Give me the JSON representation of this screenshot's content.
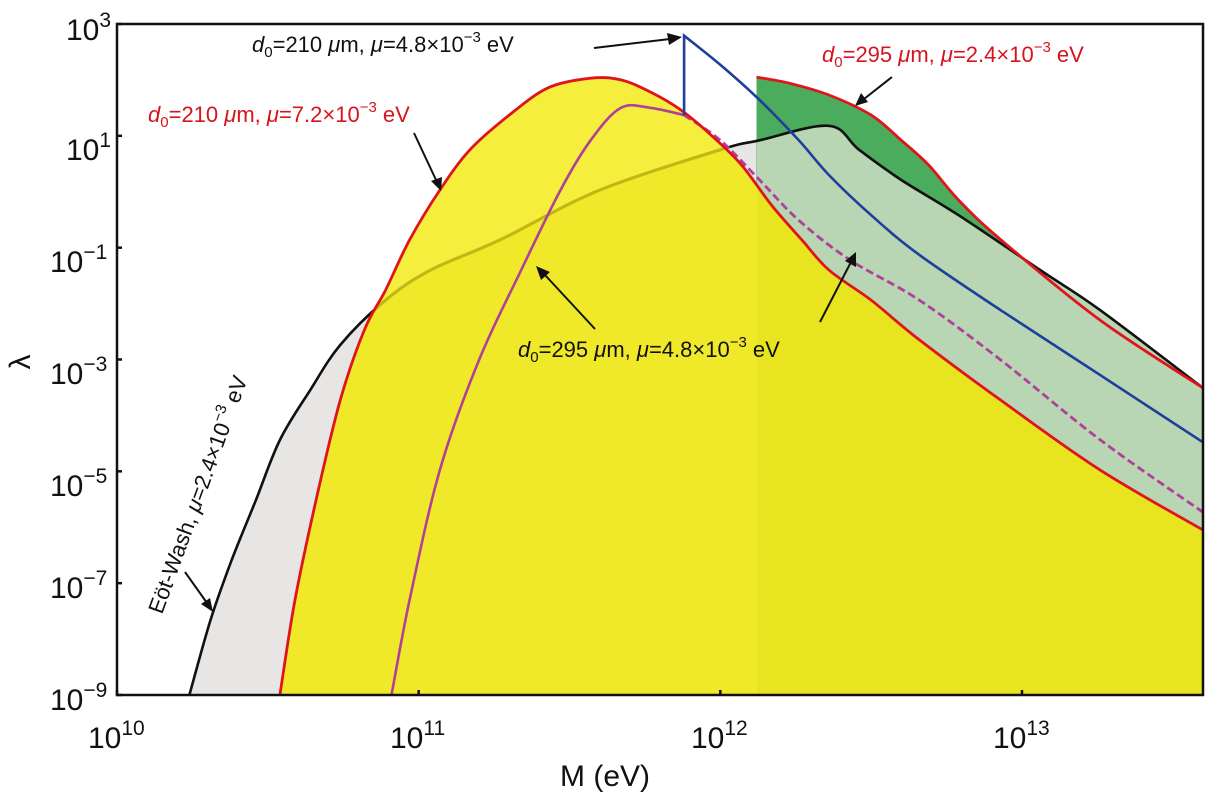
{
  "chart_data": {
    "type": "area",
    "title": "",
    "xlabel": "M (eV)",
    "ylabel": "λ",
    "xscale": "log",
    "yscale": "log",
    "xlim_log10": [
      10,
      13.6
    ],
    "ylim_log10": [
      -9,
      3
    ],
    "grid": false,
    "x_ticks": [
      {
        "base": "10",
        "exp": "10",
        "log": 10
      },
      {
        "base": "10",
        "exp": "11",
        "log": 11
      },
      {
        "base": "10",
        "exp": "12",
        "log": 12
      },
      {
        "base": "10",
        "exp": "13",
        "log": 13
      }
    ],
    "y_ticks": [
      {
        "base": "10",
        "exp": "3",
        "log": 3
      },
      {
        "base": "10",
        "exp": "1",
        "log": 1
      },
      {
        "base": "10",
        "exp": "−1",
        "log": -1
      },
      {
        "base": "10",
        "exp": "−3",
        "log": -3
      },
      {
        "base": "10",
        "exp": "−5",
        "log": -5
      },
      {
        "base": "10",
        "exp": "−7",
        "log": -7
      },
      {
        "base": "10",
        "exp": "−9",
        "log": -9
      }
    ],
    "series": [
      {
        "name": "Eöt-Wash, μ=2.4×10−3 eV",
        "style": "solid",
        "color": "#111111",
        "fill": "#e8e6e4",
        "points_log10": [
          [
            10.24,
            -9.0
          ],
          [
            10.31,
            -7.66
          ],
          [
            10.38,
            -6.59
          ],
          [
            10.46,
            -5.52
          ],
          [
            10.54,
            -4.44
          ],
          [
            10.64,
            -3.55
          ],
          [
            10.74,
            -2.74
          ],
          [
            10.89,
            -1.94
          ],
          [
            11.04,
            -1.4
          ],
          [
            11.27,
            -0.86
          ],
          [
            11.6,
            0.03
          ],
          [
            12.0,
            0.75
          ],
          [
            12.13,
            0.92
          ],
          [
            12.36,
            1.18
          ],
          [
            12.46,
            0.75
          ],
          [
            12.6,
            0.21
          ],
          [
            12.79,
            -0.42
          ],
          [
            13.06,
            -1.4
          ],
          [
            13.26,
            -2.12
          ],
          [
            13.6,
            -3.51
          ]
        ]
      },
      {
        "name": "d0=295 μm, μ=2.4×10−3 eV",
        "style": "solid",
        "color": "#e0141c",
        "fill": "#4aac5c",
        "points_log10": [
          [
            12.12,
            2.05
          ],
          [
            12.23,
            1.94
          ],
          [
            12.36,
            1.73
          ],
          [
            12.5,
            1.37
          ],
          [
            12.6,
            0.92
          ],
          [
            12.69,
            0.48
          ],
          [
            12.79,
            -0.15
          ],
          [
            12.93,
            -0.86
          ],
          [
            13.26,
            -2.3
          ],
          [
            13.6,
            -3.51
          ]
        ]
      },
      {
        "name": "d0=210 μm, μ=7.2×10−3 eV",
        "style": "solid",
        "color": "#e0141c",
        "fill": "#f5ee3c",
        "points_log10": [
          [
            10.54,
            -9.0
          ],
          [
            10.59,
            -7.3
          ],
          [
            10.66,
            -5.51
          ],
          [
            10.74,
            -3.73
          ],
          [
            10.82,
            -2.47
          ],
          [
            10.89,
            -1.76
          ],
          [
            10.97,
            -0.86
          ],
          [
            11.07,
            0.03
          ],
          [
            11.17,
            0.75
          ],
          [
            11.3,
            1.37
          ],
          [
            11.43,
            1.86
          ],
          [
            11.57,
            2.03
          ],
          [
            11.67,
            2.0
          ],
          [
            11.77,
            1.78
          ],
          [
            11.87,
            1.46
          ],
          [
            11.97,
            1.01
          ],
          [
            12.07,
            0.48
          ],
          [
            12.17,
            -0.24
          ],
          [
            12.27,
            -0.86
          ],
          [
            12.36,
            -1.4
          ],
          [
            12.5,
            -1.94
          ],
          [
            12.66,
            -2.65
          ],
          [
            12.93,
            -3.73
          ],
          [
            13.26,
            -4.98
          ],
          [
            13.6,
            -6.05
          ]
        ]
      },
      {
        "name": "d0=295 μm, μ=4.8×10−3 eV",
        "style": "solid-then-dashed",
        "color": "#b0409a",
        "points_log10": [
          [
            10.91,
            -9.0
          ],
          [
            10.97,
            -7.3
          ],
          [
            11.07,
            -4.98
          ],
          [
            11.2,
            -3.01
          ],
          [
            11.34,
            -1.4
          ],
          [
            11.47,
            0.03
          ],
          [
            11.57,
            0.92
          ],
          [
            11.67,
            1.5
          ],
          [
            11.77,
            1.5
          ],
          [
            11.88,
            1.37
          ],
          [
            12.0,
            0.92
          ],
          [
            12.13,
            0.21
          ],
          [
            12.26,
            -0.51
          ],
          [
            12.43,
            -1.22
          ],
          [
            12.66,
            -1.94
          ],
          [
            12.93,
            -3.01
          ],
          [
            13.26,
            -4.44
          ],
          [
            13.6,
            -5.73
          ]
        ],
        "dashed_from_log10_x": 11.88
      },
      {
        "name": "d0=210 μm, μ=4.8×10−3 eV",
        "style": "solid",
        "color": "#1f3f9c",
        "points_log10": [
          [
            11.88,
            1.37
          ],
          [
            11.88,
            2.79
          ],
          [
            12.0,
            2.27
          ],
          [
            12.13,
            1.64
          ],
          [
            12.26,
            0.92
          ],
          [
            12.36,
            0.3
          ],
          [
            12.5,
            -0.42
          ],
          [
            12.66,
            -1.13
          ],
          [
            12.93,
            -2.12
          ],
          [
            13.26,
            -3.28
          ],
          [
            13.6,
            -4.48
          ]
        ]
      }
    ],
    "shading_split_log10_x": 12.12,
    "annotations": [
      {
        "id": "a1",
        "prefix": "d",
        "sub": "0",
        "mid": "=210 ",
        "mu": "μ",
        "mid2": "m, ",
        "mu2": "μ",
        "val": "=4.8×10",
        "exp": "−3",
        "unit": " eV",
        "color": "black"
      },
      {
        "id": "a2",
        "prefix": "d",
        "sub": "0",
        "mid": "=295 ",
        "mu": "μ",
        "mid2": "m, ",
        "mu2": "μ",
        "val": "=2.4×10",
        "exp": "−3",
        "unit": " eV",
        "color": "red"
      },
      {
        "id": "a3",
        "prefix": "d",
        "sub": "0",
        "mid": "=210 ",
        "mu": "μ",
        "mid2": "m, ",
        "mu2": "μ",
        "val": "=7.2×10",
        "exp": "−3",
        "unit": " eV",
        "color": "red"
      },
      {
        "id": "a4",
        "prefix": "d",
        "sub": "0",
        "mid": "=295 ",
        "mu": "μ",
        "mid2": "m, ",
        "mu2": "μ",
        "val": "=4.8×10",
        "exp": "−3",
        "unit": " eV",
        "color": "black"
      },
      {
        "id": "a5",
        "prefix": "Eöt-Wash, ",
        "mu": "μ",
        "val": "=2.4×10",
        "exp": "−3",
        "unit": " eV",
        "color": "black"
      }
    ],
    "colors": {
      "yellow_light": "#f5ee3c",
      "yellow_dark": "#e9e420",
      "grey": "#e8e6e4",
      "green_light": "#b9d6b4",
      "green_dark": "#4aac5c",
      "olive": "#c2b814",
      "red": "#e0141c",
      "blue": "#1f3f9c",
      "purple": "#b0409a"
    }
  }
}
